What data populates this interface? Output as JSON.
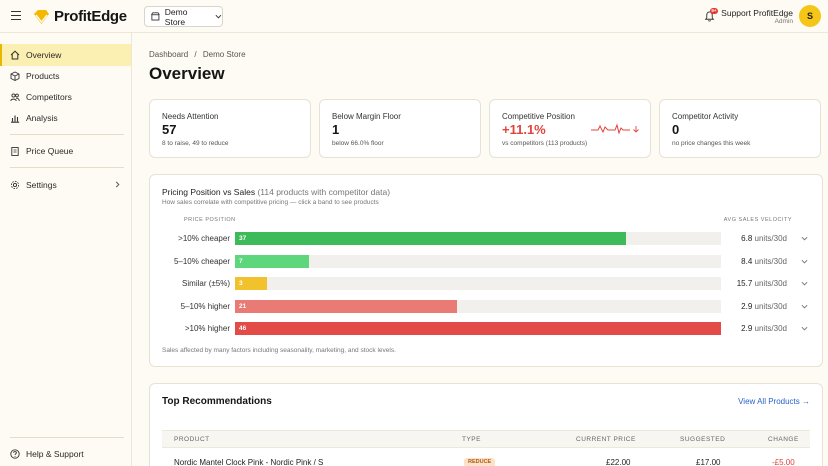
{
  "app": {
    "brand": "ProfitEdge"
  },
  "store_selector": {
    "label": "Demo Store"
  },
  "notifications": {
    "badge": "9+"
  },
  "user": {
    "name": "Support ProfitEdge",
    "role": "Admin",
    "initial": "S"
  },
  "sidebar": {
    "items": [
      {
        "label": "Overview",
        "icon": "home-icon",
        "active": true
      },
      {
        "label": "Products",
        "icon": "box-icon"
      },
      {
        "label": "Competitors",
        "icon": "people-icon"
      },
      {
        "label": "Analysis",
        "icon": "bar-chart-icon"
      },
      {
        "label": "Price Queue",
        "icon": "clipboard-icon"
      },
      {
        "label": "Settings",
        "icon": "gear-icon"
      }
    ],
    "footer": "Help & Support"
  },
  "breadcrumb": {
    "root": "Dashboard",
    "sep": "/",
    "current": "Demo Store"
  },
  "page_title": "Overview",
  "stats": [
    {
      "label": "Needs Attention",
      "value": "57",
      "sub": "8 to raise, 49 to reduce"
    },
    {
      "label": "Below Margin Floor",
      "value": "1",
      "sub": "below 66.0% floor"
    },
    {
      "label": "Competitive Position",
      "value": "+11.1%",
      "sub": "vs competitors (113 products)"
    },
    {
      "label": "Competitor Activity",
      "value": "0",
      "sub": "no price changes this week"
    }
  ],
  "pricing_position": {
    "title": "Pricing Position vs Sales",
    "title_muted": "(114 products with competitor data)",
    "subtitle": "How sales correlate with competitive pricing — click a band to see products",
    "col_left": "PRICE POSITION",
    "col_right": "AVG SALES VELOCITY",
    "footnote": "Sales affected by many factors including seasonality, marketing, and stock levels.",
    "unit": "units/30d"
  },
  "chart_data": {
    "type": "bar",
    "orientation": "horizontal",
    "categories": [
      ">10% cheaper",
      "5–10% cheaper",
      "Similar (±5%)",
      "5–10% higher",
      ">10% higher"
    ],
    "values": [
      37,
      7,
      3,
      21,
      46
    ],
    "velocity": [
      "6.8",
      "8.4",
      "15.7",
      "2.9",
      "2.9"
    ],
    "colors": [
      "#3dba59",
      "#5dd67c",
      "#f2c12e",
      "#e97a74",
      "#e24b47"
    ],
    "xlim": [
      0,
      46
    ]
  },
  "recommendations": {
    "title": "Top Recommendations",
    "link": "View All Products →",
    "columns": [
      "PRODUCT",
      "TYPE",
      "CURRENT PRICE",
      "SUGGESTED",
      "CHANGE"
    ],
    "rows": [
      {
        "product": "Nordic Mantel Clock Pink - Nordic Pink / S",
        "type": "REDUCE",
        "current": "£22.00",
        "suggested": "£17.00",
        "change": "-£5.00"
      }
    ]
  }
}
